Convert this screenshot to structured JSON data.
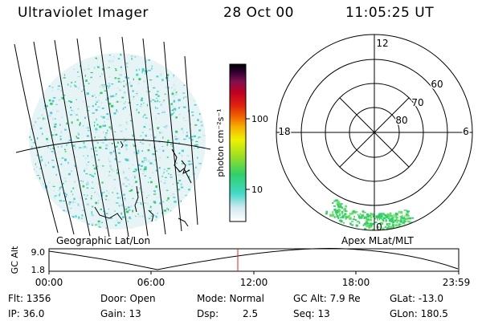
{
  "header": {
    "instrument": "Ultraviolet Imager",
    "date": "28 Oct 00",
    "time": "11:05:25 UT"
  },
  "panels": {
    "left_label": "Geographic Lat/Lon",
    "right_label": "Apex MLat/MLT"
  },
  "colorbar": {
    "unit_label": "photon cm⁻²s⁻¹",
    "tick_100": "100",
    "tick_10": "10",
    "colors": [
      "#ffffff",
      "#cfe8f0",
      "#40d8c8",
      "#30d068",
      "#a0e020",
      "#f0f000",
      "#f8b000",
      "#f06000",
      "#e02010",
      "#c00020",
      "#801050",
      "#300030",
      "#000000"
    ]
  },
  "polar": {
    "mlt_labels": {
      "noon": "12",
      "dusk": "18",
      "dawn": "6",
      "midnight": "0"
    },
    "lat_labels": [
      "60",
      "70",
      "80"
    ]
  },
  "altitude_plot": {
    "ylabel": "GC Alt",
    "y_ticks": [
      "9.0",
      "1.8"
    ],
    "x_ticks": [
      "00:00",
      "06:00",
      "12:00",
      "18:00",
      "23:59"
    ],
    "current_time_marker": "11:05",
    "marker_color": "#e02020"
  },
  "info": {
    "flt": "Flt: 1356",
    "ip": "IP: 36.0",
    "door": "Door: Open",
    "gain": "Gain: 13",
    "mode": "Mode: Normal",
    "dsp_label": "Dsp:",
    "dsp_value": "2.5",
    "gcalt": "GC Alt: 7.9 Re",
    "seq": "Seq: 13",
    "glat": "GLat: -13.0",
    "glon": "GLon: 180.5"
  }
}
